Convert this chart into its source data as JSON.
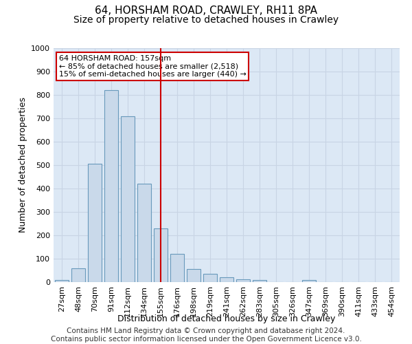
{
  "title_line1": "64, HORSHAM ROAD, CRAWLEY, RH11 8PA",
  "title_line2": "Size of property relative to detached houses in Crawley",
  "xlabel": "Distribution of detached houses by size in Crawley",
  "ylabel": "Number of detached properties",
  "categories": [
    "27sqm",
    "48sqm",
    "70sqm",
    "91sqm",
    "112sqm",
    "134sqm",
    "155sqm",
    "176sqm",
    "198sqm",
    "219sqm",
    "241sqm",
    "262sqm",
    "283sqm",
    "305sqm",
    "326sqm",
    "347sqm",
    "369sqm",
    "390sqm",
    "411sqm",
    "433sqm",
    "454sqm"
  ],
  "values": [
    8,
    60,
    505,
    820,
    710,
    420,
    230,
    120,
    55,
    35,
    20,
    13,
    10,
    0,
    0,
    10,
    0,
    0,
    0,
    0,
    0
  ],
  "bar_color": "#c9d9ea",
  "bar_edge_color": "#6899bb",
  "vline_x_index": 6,
  "vline_color": "#cc0000",
  "annotation_text": "64 HORSHAM ROAD: 157sqm\n← 85% of detached houses are smaller (2,518)\n15% of semi-detached houses are larger (440) →",
  "annotation_box_color": "white",
  "annotation_box_edge_color": "#cc0000",
  "ylim": [
    0,
    1000
  ],
  "yticks": [
    0,
    100,
    200,
    300,
    400,
    500,
    600,
    700,
    800,
    900,
    1000
  ],
  "grid_color": "#c8d4e4",
  "background_color": "#dce8f5",
  "footer_text": "Contains HM Land Registry data © Crown copyright and database right 2024.\nContains public sector information licensed under the Open Government Licence v3.0.",
  "title_fontsize": 11,
  "subtitle_fontsize": 10,
  "axis_label_fontsize": 9,
  "tick_fontsize": 8,
  "annotation_fontsize": 8,
  "footer_fontsize": 7.5
}
